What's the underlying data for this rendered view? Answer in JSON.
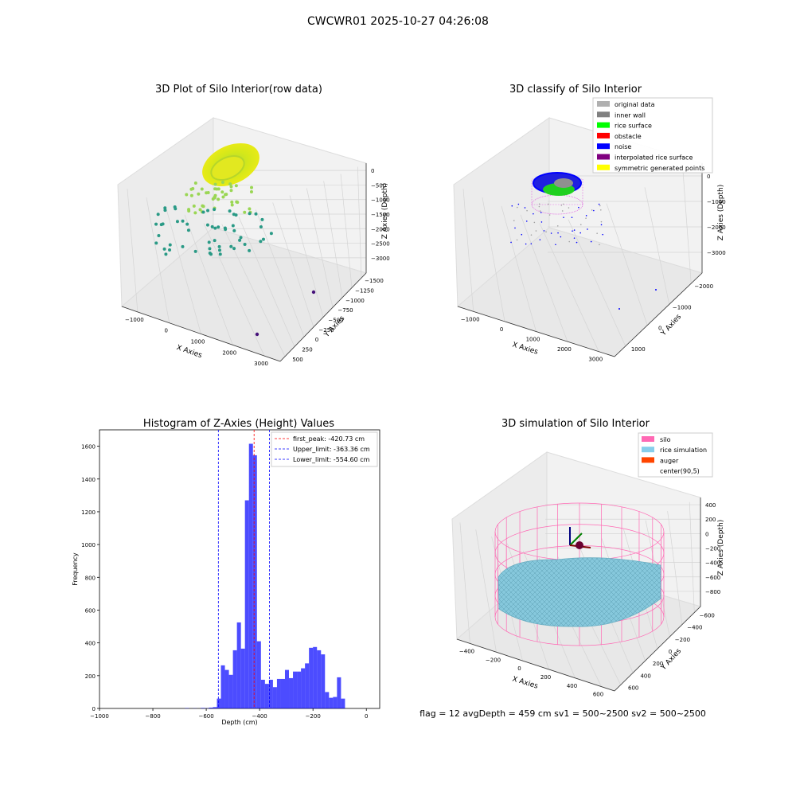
{
  "figure": {
    "suptitle": "CWCWR01 2025-10-27 04:26:08",
    "status_line": "flag = 12   avgDepth = 459 cm   sv1 = 500~2500   sv2 = 500~2500"
  },
  "chart_data": [
    {
      "type": "scatter",
      "title": "3D Plot of Silo Interior(row data)",
      "xlabel": "X Axies",
      "ylabel": "Y Axies",
      "zlabel": "Z Axies (Depth)",
      "xticks": [
        "−1000",
        "0",
        "1000",
        "2000",
        "3000"
      ],
      "yticks": [
        "500",
        "250",
        "0",
        "−250",
        "−500",
        "−750",
        "−1000",
        "−1250",
        "−1500"
      ],
      "zticks": [
        "0",
        "−500",
        "−1000",
        "−1500",
        "−2000",
        "−2500",
        "−3000"
      ],
      "colors": {
        "surface": "#c8e81e",
        "mid": "#9ad654",
        "low": "#2a9a86",
        "outlier": "#46127a"
      }
    },
    {
      "type": "scatter",
      "title": "3D classify of Silo Interior",
      "xlabel": "X Axies",
      "ylabel": "Y Axies",
      "zlabel": "Z Axies (Depth)",
      "xticks": [
        "−1000",
        "0",
        "1000",
        "2000",
        "3000"
      ],
      "yticks": [
        "1000",
        "0",
        "−1000",
        "−2000"
      ],
      "zticks": [
        "0",
        "−1000",
        "−2000",
        "−3000"
      ],
      "legend": [
        {
          "label": "original data",
          "color": "#b0b0b0"
        },
        {
          "label": "inner wall",
          "color": "#808080"
        },
        {
          "label": "rice surface",
          "color": "#00ff00"
        },
        {
          "label": "obstacle",
          "color": "#ff0000"
        },
        {
          "label": "noise",
          "color": "#0000ff"
        },
        {
          "label": "interpolated rice surface",
          "color": "#800080"
        },
        {
          "label": "symmetric generated points",
          "color": "#ffff00"
        }
      ],
      "legend_placement": "top-right"
    },
    {
      "type": "bar",
      "title": "Histogram of Z-Axies (Height) Values",
      "xlabel": "Depth (cm)",
      "ylabel": "Frequency",
      "xlim": [
        -1000,
        50
      ],
      "ylim": [
        0,
        1700
      ],
      "xticks": [
        -1000,
        -800,
        -600,
        -400,
        -200,
        0
      ],
      "yticks": [
        0,
        200,
        400,
        600,
        800,
        1000,
        1200,
        1400,
        1600
      ],
      "bar_color": "#0000ff",
      "bins": [
        [
          -680,
          -665,
          2
        ],
        [
          -665,
          -650,
          0
        ],
        [
          -650,
          -635,
          1
        ],
        [
          -635,
          -620,
          0
        ],
        [
          -620,
          -605,
          3
        ],
        [
          -605,
          -590,
          1
        ],
        [
          -590,
          -575,
          5
        ],
        [
          -575,
          -560,
          8
        ],
        [
          -560,
          -545,
          60
        ],
        [
          -545,
          -530,
          263
        ],
        [
          -530,
          -515,
          235
        ],
        [
          -515,
          -500,
          205
        ],
        [
          -500,
          -485,
          355
        ],
        [
          -485,
          -470,
          525
        ],
        [
          -470,
          -455,
          365
        ],
        [
          -455,
          -440,
          1270
        ],
        [
          -440,
          -425,
          1615
        ],
        [
          -425,
          -410,
          1545
        ],
        [
          -410,
          -395,
          410
        ],
        [
          -395,
          -380,
          175
        ],
        [
          -380,
          -365,
          150
        ],
        [
          -365,
          -350,
          175
        ],
        [
          -350,
          -335,
          130
        ],
        [
          -335,
          -320,
          180
        ],
        [
          -320,
          -305,
          180
        ],
        [
          -305,
          -290,
          235
        ],
        [
          -290,
          -275,
          185
        ],
        [
          -275,
          -260,
          225
        ],
        [
          -260,
          -245,
          225
        ],
        [
          -245,
          -230,
          245
        ],
        [
          -230,
          -215,
          275
        ],
        [
          -215,
          -200,
          370
        ],
        [
          -200,
          -185,
          375
        ],
        [
          -185,
          -170,
          355
        ],
        [
          -170,
          -155,
          330
        ],
        [
          -155,
          -140,
          100
        ],
        [
          -140,
          -125,
          65
        ],
        [
          -125,
          -110,
          70
        ],
        [
          -110,
          -95,
          190
        ],
        [
          -95,
          -80,
          60
        ]
      ],
      "lines": [
        {
          "label": "first_peak: -420.73 cm",
          "x": -420.73,
          "color": "#ff0000"
        },
        {
          "label": "Upper_limit: -363.36 cm",
          "x": -363.36,
          "color": "#0000ff"
        },
        {
          "label": "Lower_limit: -554.60 cm",
          "x": -554.6,
          "color": "#0000ff"
        }
      ],
      "legend_placement": "top-right"
    },
    {
      "type": "scatter",
      "title": "3D simulation of Silo Interior",
      "xlabel": "X Axies",
      "ylabel": "Y Axies",
      "zlabel": "Z Axies (Depth)",
      "xticks": [
        "−400",
        "−200",
        "0",
        "200",
        "400",
        "600"
      ],
      "yticks": [
        "600",
        "400",
        "200",
        "0",
        "−200",
        "−400",
        "−600"
      ],
      "zticks": [
        "400",
        "200",
        "0",
        "−200",
        "−400",
        "−600",
        "−800"
      ],
      "legend": [
        {
          "label": "silo",
          "color": "#ff69b4"
        },
        {
          "label": "rice simulation",
          "color": "#87ceeb"
        },
        {
          "label": "auger",
          "color": "#ff4500"
        },
        {
          "label": "center(90,5)",
          "color": "#ffffff"
        }
      ],
      "legend_placement": "top-right"
    }
  ]
}
